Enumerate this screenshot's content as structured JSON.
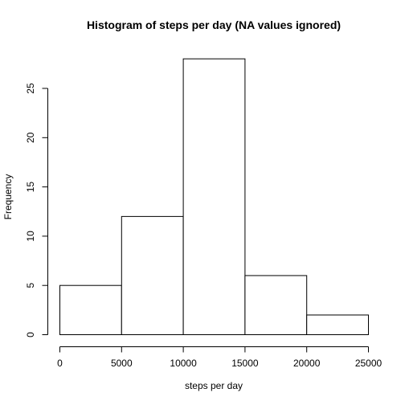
{
  "chart_data": {
    "type": "bar",
    "title": "Histogram of steps per day (NA values ignored)",
    "xlabel": "steps per day",
    "ylabel": "Frequency",
    "bins": [
      {
        "from": 0,
        "to": 5000,
        "count": 5
      },
      {
        "from": 5000,
        "to": 10000,
        "count": 12
      },
      {
        "from": 10000,
        "to": 15000,
        "count": 28
      },
      {
        "from": 15000,
        "to": 20000,
        "count": 6
      },
      {
        "from": 20000,
        "to": 25000,
        "count": 2
      }
    ],
    "xlim": [
      0,
      25000
    ],
    "ylim": [
      0,
      28
    ],
    "x_ticks": [
      0,
      5000,
      10000,
      15000,
      20000,
      25000
    ],
    "x_tick_labels": [
      "0",
      "5000",
      "10000",
      "15000",
      "20000",
      "25000"
    ],
    "y_ticks": [
      0,
      5,
      10,
      15,
      20,
      25
    ],
    "y_tick_labels": [
      "0",
      "5",
      "10",
      "15",
      "20",
      "25"
    ],
    "grid": false,
    "legend": "none"
  }
}
